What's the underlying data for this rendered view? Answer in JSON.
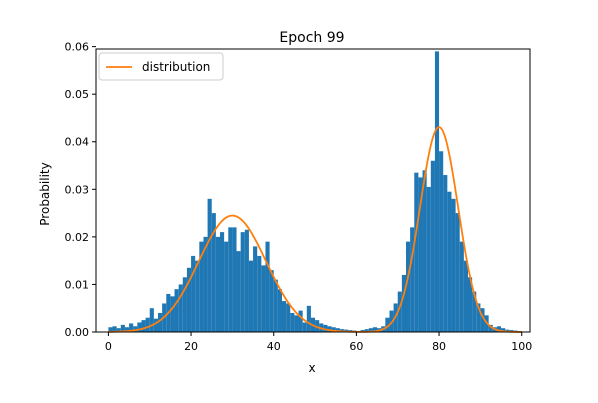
{
  "chart_data": {
    "type": "bar",
    "title": "Epoch 99",
    "xlabel": "x",
    "ylabel": "Probability",
    "xlim": [
      -3,
      102
    ],
    "ylim": [
      0,
      0.0595
    ],
    "xticks": [
      0,
      20,
      40,
      60,
      80,
      100
    ],
    "yticks": [
      0.0,
      0.01,
      0.02,
      0.03,
      0.04,
      0.05,
      0.06
    ],
    "ytick_labels": [
      "0.00",
      "0.01",
      "0.02",
      "0.03",
      "0.04",
      "0.05",
      "0.06"
    ],
    "grid": false,
    "legend": {
      "placement": "top-left",
      "entries": [
        "distribution"
      ]
    },
    "series": [
      {
        "name": "histogram",
        "color": "#1f77b4",
        "bin_width": 1,
        "bins_x": [
          0,
          1,
          2,
          3,
          4,
          5,
          6,
          7,
          8,
          9,
          10,
          11,
          12,
          13,
          14,
          15,
          16,
          17,
          18,
          19,
          20,
          21,
          22,
          23,
          24,
          25,
          26,
          27,
          28,
          29,
          30,
          31,
          32,
          33,
          34,
          35,
          36,
          37,
          38,
          39,
          40,
          41,
          42,
          43,
          44,
          45,
          46,
          47,
          48,
          49,
          50,
          51,
          52,
          53,
          54,
          55,
          56,
          57,
          58,
          59,
          60,
          61,
          62,
          63,
          64,
          65,
          66,
          67,
          68,
          69,
          70,
          71,
          72,
          73,
          74,
          75,
          76,
          77,
          78,
          79,
          80,
          81,
          82,
          83,
          84,
          85,
          86,
          87,
          88,
          89,
          90,
          91,
          92,
          93,
          94,
          95,
          96,
          97,
          98,
          99
        ],
        "values": [
          0.001,
          0.0012,
          0.0008,
          0.0015,
          0.001,
          0.0018,
          0.0012,
          0.002,
          0.0025,
          0.003,
          0.005,
          0.0028,
          0.004,
          0.006,
          0.008,
          0.0075,
          0.009,
          0.01,
          0.0115,
          0.0135,
          0.016,
          0.015,
          0.019,
          0.02,
          0.028,
          0.025,
          0.02,
          0.021,
          0.019,
          0.022,
          0.022,
          0.017,
          0.021,
          0.0215,
          0.015,
          0.018,
          0.016,
          0.014,
          0.019,
          0.013,
          0.011,
          0.009,
          0.0065,
          0.006,
          0.004,
          0.0035,
          0.0045,
          0.002,
          0.0055,
          0.003,
          0.0025,
          0.0018,
          0.0015,
          0.0012,
          0.001,
          0.0008,
          0.0006,
          0.0005,
          0.0004,
          0.0003,
          0.0002,
          0.0004,
          0.0006,
          0.0008,
          0.001,
          0.0008,
          0.0012,
          0.003,
          0.0045,
          0.006,
          0.0085,
          0.012,
          0.019,
          0.022,
          0.0335,
          0.0325,
          0.034,
          0.0305,
          0.036,
          0.059,
          0.038,
          0.033,
          0.0295,
          0.028,
          0.025,
          0.019,
          0.015,
          0.0115,
          0.0085,
          0.006,
          0.005,
          0.0035,
          0.0015,
          0.001,
          0.0012,
          0.0008,
          0.0005,
          0.0004,
          0.0003,
          0.0002
        ]
      },
      {
        "name": "distribution",
        "color": "#ff7f0e",
        "mixture": [
          {
            "weight": 0.5,
            "mean": 30,
            "sd": 8.15
          },
          {
            "weight": 0.5,
            "mean": 80,
            "sd": 4.63
          }
        ],
        "x_range": [
          0,
          100
        ]
      }
    ]
  }
}
